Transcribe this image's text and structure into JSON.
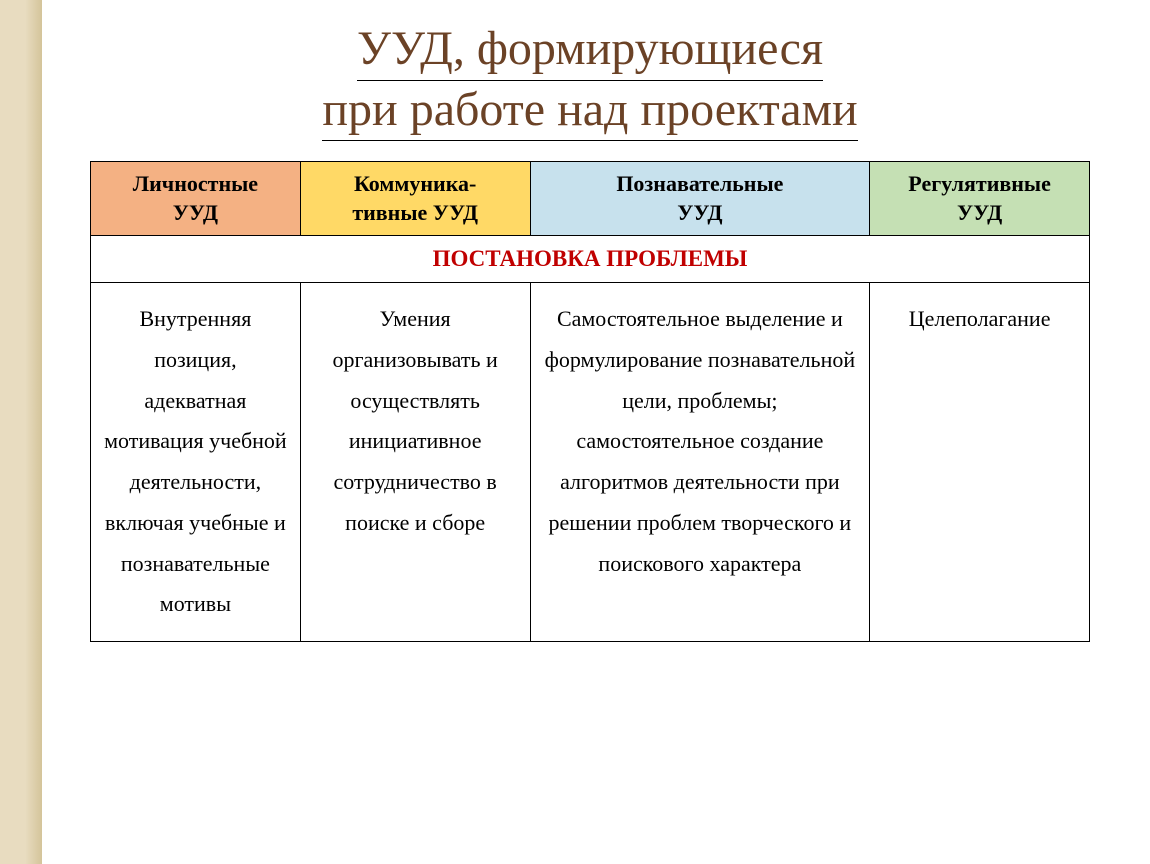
{
  "title": {
    "line1": "УУД, формирующиеся",
    "line2": "при работе над проектами"
  },
  "table": {
    "headers": [
      {
        "text": "Личностные\nУУД",
        "bg": "#f4b183"
      },
      {
        "text": "Коммуника-\nтивные УУД",
        "bg": "#ffd966"
      },
      {
        "text": "Познавательные\nУУД",
        "bg": "#c7e1ed"
      },
      {
        "text": "Регулятивные\nУУД",
        "bg": "#c5e0b4"
      }
    ],
    "section": {
      "label": "ПОСТАНОВКА ПРОБЛЕМЫ",
      "color": "#c00000",
      "bg": "#ffffff"
    },
    "row": [
      "Внутренняя позиция, адекватная мотивация учебной деятельности, включая учебные и познавательные мотивы",
      "Умения организовывать и осуществлять инициативное сотрудничество в поиске и сборе",
      "Самостоятельное выделение и формулирование познавательной цели, проблемы; самостоятельное создание алгоритмов деятельности при решении проблем творческого и поискового характера",
      "Целеполагание"
    ]
  },
  "colors": {
    "title": "#6b4226",
    "border": "#000000",
    "text": "#000000"
  }
}
